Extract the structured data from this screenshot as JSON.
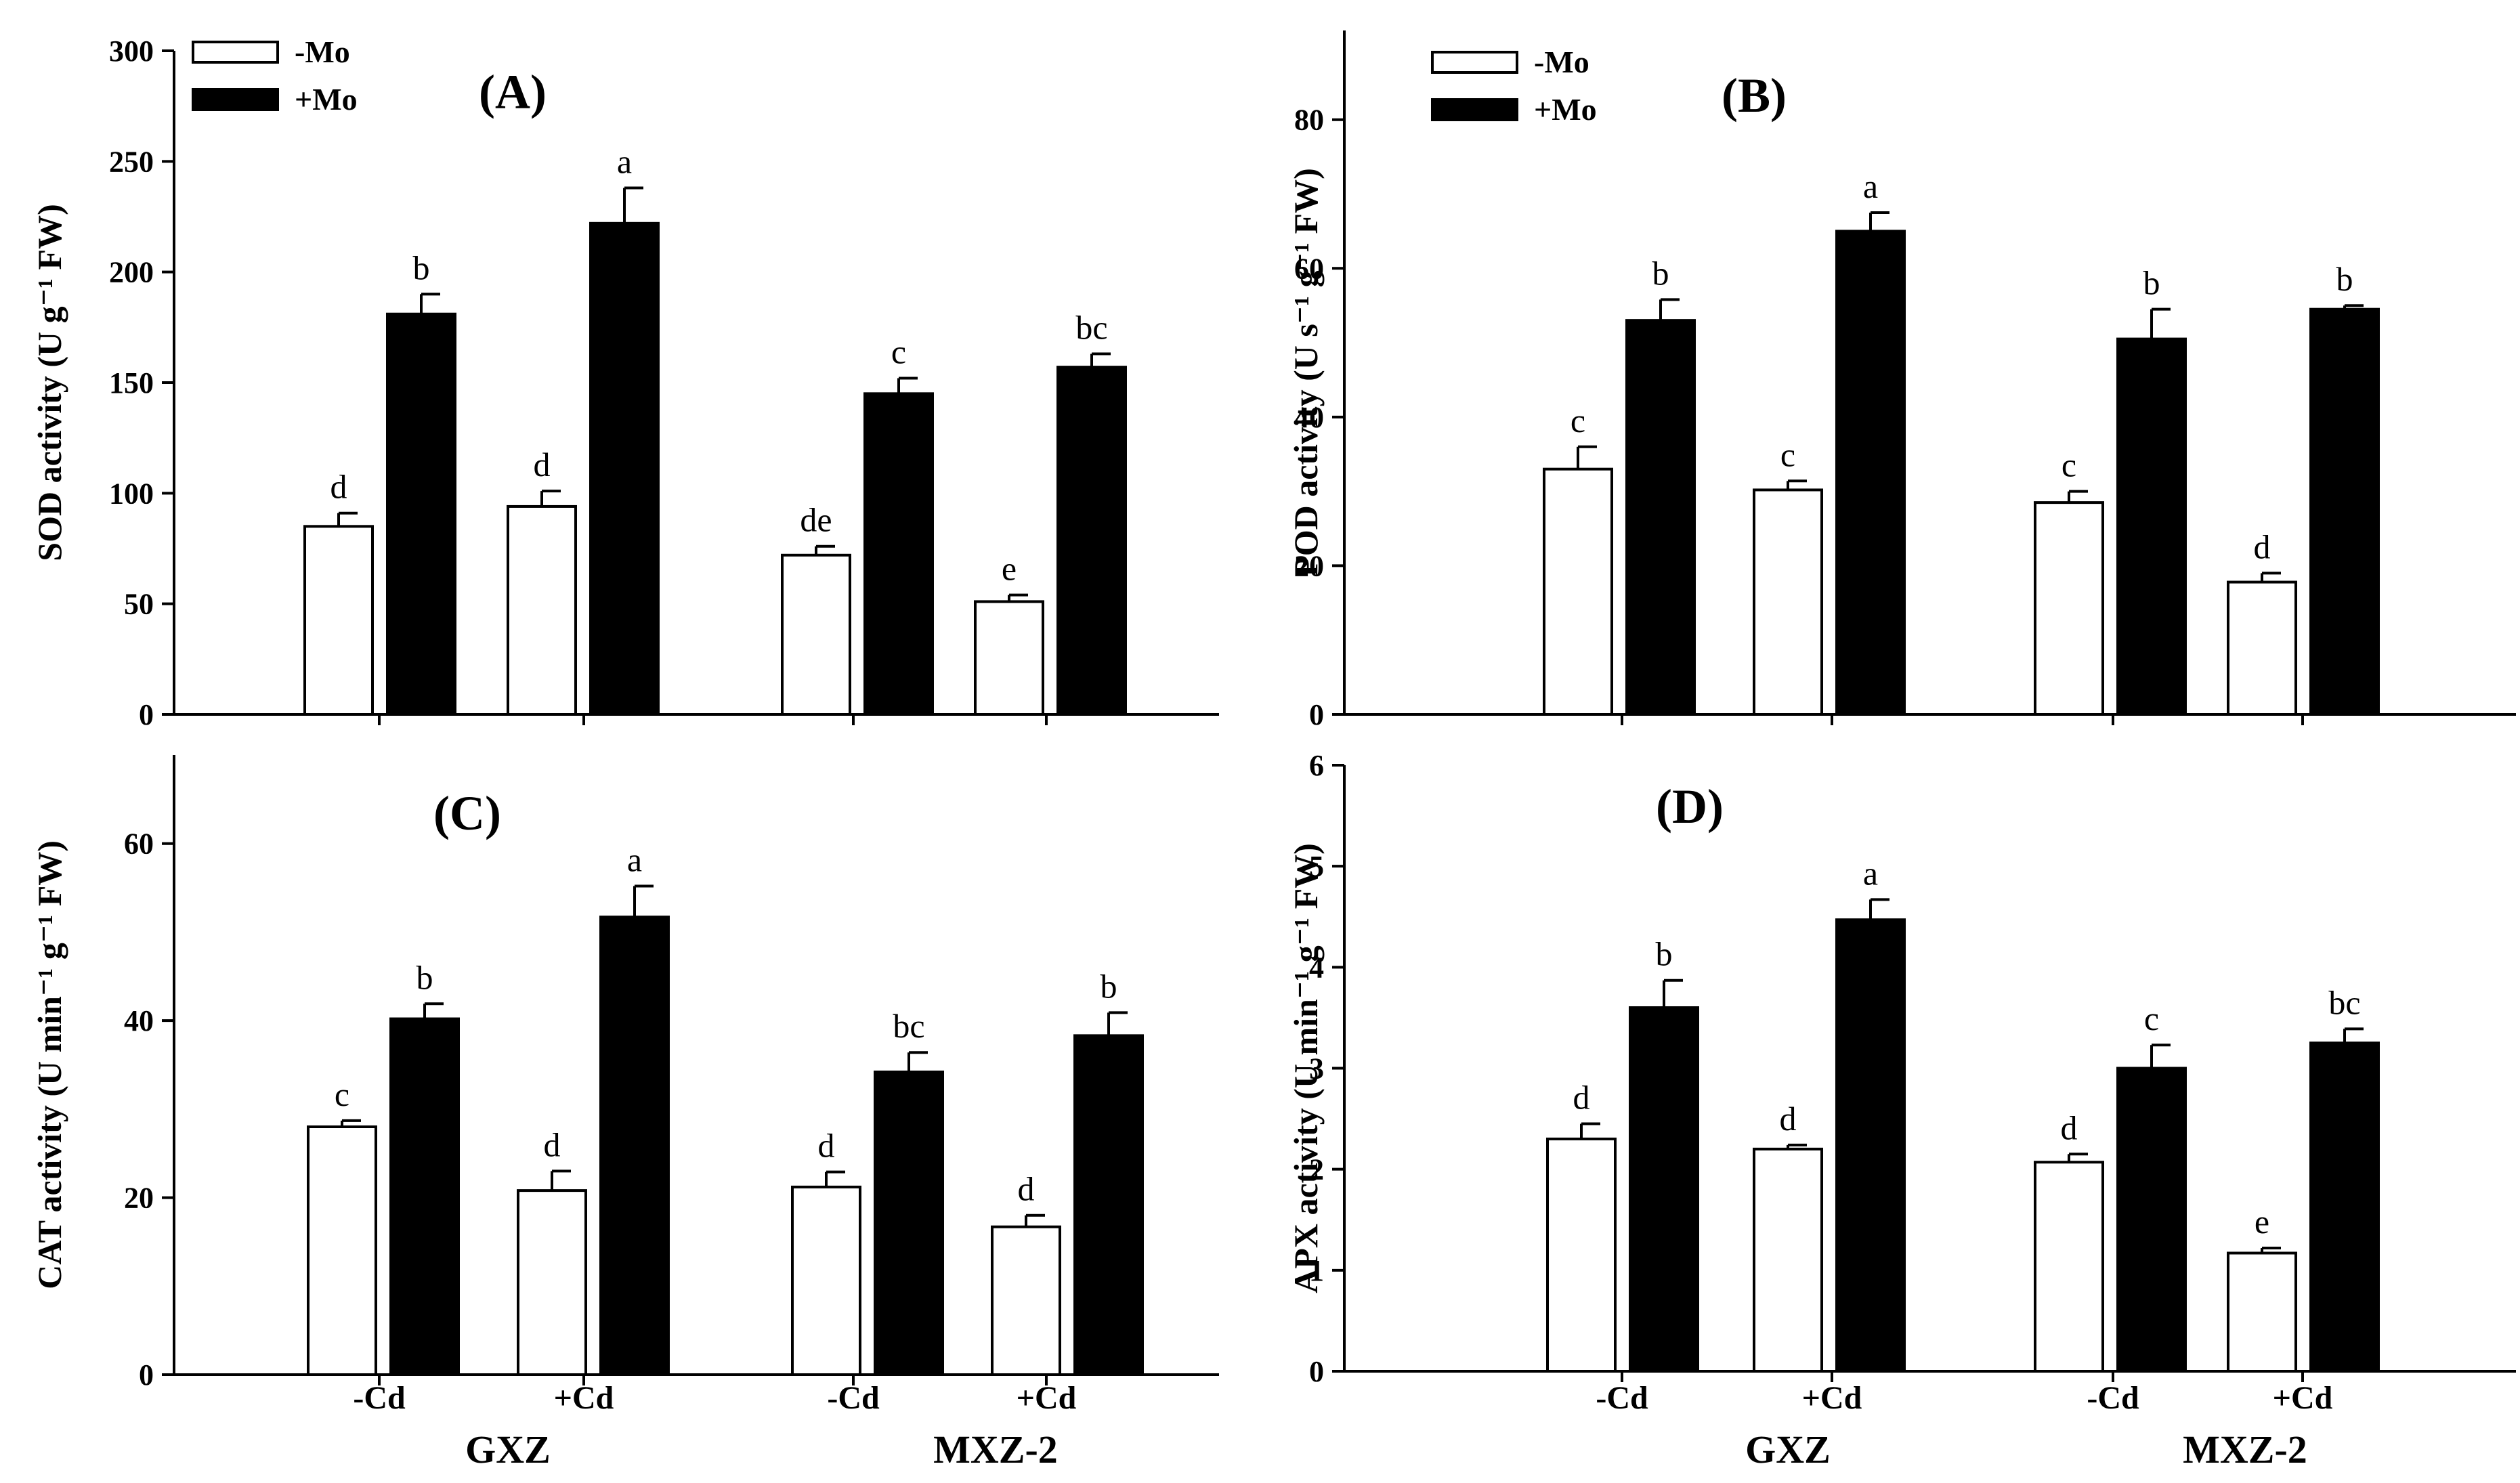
{
  "chart_data": [
    {
      "type": "bar",
      "panel": "(A)",
      "ylabel": "SOD activity (U g⁻¹ FW)",
      "ylim": [
        0,
        300
      ],
      "yticks": [
        0,
        50,
        100,
        150,
        200,
        250,
        300
      ],
      "legend": [
        "-Mo",
        "+Mo"
      ],
      "groups": [
        "GXZ",
        "MXZ-2"
      ],
      "treatments": [
        "-Cd",
        "+Cd"
      ],
      "categories": [
        "GXZ -Cd",
        "GXZ +Cd",
        "MXZ-2 -Cd",
        "MXZ-2 +Cd"
      ],
      "series": [
        {
          "name": "-Mo",
          "values": [
            85,
            94,
            72,
            51
          ],
          "errors": [
            6,
            7,
            4,
            3
          ],
          "letters": [
            "d",
            "d",
            "de",
            "e"
          ]
        },
        {
          "name": "+Mo",
          "values": [
            181,
            222,
            145,
            157
          ],
          "errors": [
            9,
            16,
            7,
            6
          ],
          "letters": [
            "b",
            "a",
            "c",
            "bc"
          ]
        }
      ]
    },
    {
      "type": "bar",
      "panel": "(B)",
      "ylabel": "POD activity (U s⁻¹ g⁻¹ FW)",
      "ylim": [
        0,
        92
      ],
      "yticks": [
        0,
        20,
        40,
        60,
        80
      ],
      "legend": [
        "-Mo",
        "+Mo"
      ],
      "groups": [
        "GXZ",
        "MXZ-2"
      ],
      "treatments": [
        "-Cd",
        "+Cd"
      ],
      "categories": [
        "GXZ -Cd",
        "GXZ +Cd",
        "MXZ-2 -Cd",
        "MXZ-2 +Cd"
      ],
      "series": [
        {
          "name": "-Mo",
          "values": [
            33,
            30.2,
            28.5,
            17.8
          ],
          "errors": [
            3,
            1.2,
            1.5,
            1.2
          ],
          "letters": [
            "c",
            "c",
            "c",
            "d"
          ]
        },
        {
          "name": "+Mo",
          "values": [
            53,
            65,
            50.5,
            54.5
          ],
          "errors": [
            2.8,
            2.5,
            4,
            0.5
          ],
          "letters": [
            "b",
            "a",
            "b",
            "b"
          ]
        }
      ]
    },
    {
      "type": "bar",
      "panel": "(C)",
      "ylabel": "CAT activity (U min⁻¹ g⁻¹ FW)",
      "ylim": [
        0,
        70
      ],
      "yticks": [
        0,
        20,
        40,
        60
      ],
      "legend": [
        "-Mo",
        "+Mo"
      ],
      "groups": [
        "GXZ",
        "MXZ-2"
      ],
      "treatments": [
        "-Cd",
        "+Cd"
      ],
      "categories": [
        "GXZ -Cd",
        "GXZ +Cd",
        "MXZ-2 -Cd",
        "MXZ-2 +Cd"
      ],
      "series": [
        {
          "name": "-Mo",
          "values": [
            28,
            20.8,
            21.2,
            16.7
          ],
          "errors": [
            0.7,
            2.2,
            1.7,
            1.3
          ],
          "letters": [
            "c",
            "d",
            "d",
            "d"
          ]
        },
        {
          "name": "+Mo",
          "values": [
            40.2,
            51.7,
            34.2,
            38.3
          ],
          "errors": [
            1.7,
            3.5,
            2.2,
            2.6
          ],
          "letters": [
            "b",
            "a",
            "bc",
            "b"
          ]
        }
      ]
    },
    {
      "type": "bar",
      "panel": "(D)",
      "ylabel": "APX activity (U min⁻¹ g⁻¹ FW)",
      "ylim": [
        0,
        6
      ],
      "yticks": [
        0,
        1,
        2,
        3,
        4,
        5,
        6
      ],
      "legend": [
        "-Mo",
        "+Mo"
      ],
      "groups": [
        "GXZ",
        "MXZ-2"
      ],
      "treatments": [
        "-Cd",
        "+Cd"
      ],
      "categories": [
        "GXZ -Cd",
        "GXZ +Cd",
        "MXZ-2 -Cd",
        "MXZ-2 +Cd"
      ],
      "series": [
        {
          "name": "-Mo",
          "values": [
            2.3,
            2.2,
            2.07,
            1.17
          ],
          "errors": [
            0.15,
            0.04,
            0.08,
            0.05
          ],
          "letters": [
            "d",
            "d",
            "d",
            "e"
          ]
        },
        {
          "name": "+Mo",
          "values": [
            3.6,
            4.47,
            3,
            3.25
          ],
          "errors": [
            0.27,
            0.2,
            0.23,
            0.14
          ],
          "letters": [
            "b",
            "a",
            "c",
            "bc"
          ]
        }
      ]
    }
  ]
}
